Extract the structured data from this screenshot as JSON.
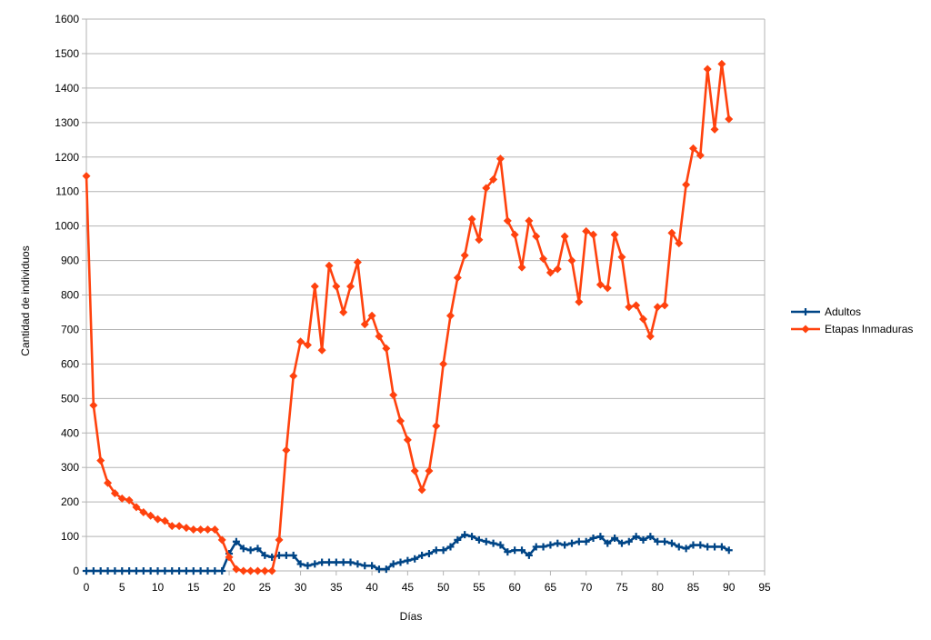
{
  "chart_data": {
    "type": "line",
    "xlabel": "Días",
    "ylabel": "Cantidad de individuos",
    "xlim": [
      0,
      95
    ],
    "ylim": [
      0,
      1600
    ],
    "x_ticks": [
      0,
      5,
      10,
      15,
      20,
      25,
      30,
      35,
      40,
      45,
      50,
      55,
      60,
      65,
      70,
      75,
      80,
      85,
      90,
      95
    ],
    "y_ticks": [
      0,
      100,
      200,
      300,
      400,
      500,
      600,
      700,
      800,
      900,
      1000,
      1100,
      1200,
      1300,
      1400,
      1500,
      1600
    ],
    "grid": "horizontal",
    "legend_position": "right",
    "series": [
      {
        "name": "Adultos",
        "color": "#004586",
        "marker": "plus",
        "x": [
          0,
          1,
          2,
          3,
          4,
          5,
          6,
          7,
          8,
          9,
          10,
          11,
          12,
          13,
          14,
          15,
          16,
          17,
          18,
          19,
          20,
          21,
          22,
          23,
          24,
          25,
          26,
          27,
          28,
          29,
          30,
          31,
          32,
          33,
          34,
          35,
          36,
          37,
          38,
          39,
          40,
          41,
          42,
          43,
          44,
          45,
          46,
          47,
          48,
          49,
          50,
          51,
          52,
          53,
          54,
          55,
          56,
          57,
          58,
          59,
          60,
          61,
          62,
          63,
          64,
          65,
          66,
          67,
          68,
          69,
          70,
          71,
          72,
          73,
          74,
          75,
          76,
          77,
          78,
          79,
          80,
          81,
          82,
          83,
          84,
          85,
          86,
          87,
          88,
          89,
          90
        ],
        "values": [
          0,
          0,
          0,
          0,
          0,
          0,
          0,
          0,
          0,
          0,
          0,
          0,
          0,
          0,
          0,
          0,
          0,
          0,
          0,
          0,
          50,
          85,
          65,
          60,
          65,
          45,
          40,
          45,
          45,
          45,
          20,
          15,
          20,
          25,
          25,
          25,
          25,
          25,
          20,
          15,
          15,
          5,
          5,
          20,
          25,
          30,
          35,
          45,
          50,
          60,
          60,
          70,
          90,
          105,
          100,
          90,
          85,
          80,
          75,
          55,
          60,
          60,
          45,
          70,
          70,
          75,
          80,
          75,
          80,
          85,
          85,
          95,
          100,
          80,
          95,
          80,
          85,
          100,
          90,
          100,
          85,
          85,
          80,
          70,
          65,
          75,
          75,
          70,
          70,
          70,
          60
        ]
      },
      {
        "name": "Etapas Inmaduras",
        "color": "#ff420e",
        "marker": "diamond",
        "x": [
          0,
          1,
          2,
          3,
          4,
          5,
          6,
          7,
          8,
          9,
          10,
          11,
          12,
          13,
          14,
          15,
          16,
          17,
          18,
          19,
          20,
          21,
          22,
          23,
          24,
          25,
          26,
          27,
          28,
          29,
          30,
          31,
          32,
          33,
          34,
          35,
          36,
          37,
          38,
          39,
          40,
          41,
          42,
          43,
          44,
          45,
          46,
          47,
          48,
          49,
          50,
          51,
          52,
          53,
          54,
          55,
          56,
          57,
          58,
          59,
          60,
          61,
          62,
          63,
          64,
          65,
          66,
          67,
          68,
          69,
          70,
          71,
          72,
          73,
          74,
          75,
          76,
          77,
          78,
          79,
          80,
          81,
          82,
          83,
          84,
          85,
          86,
          87,
          88,
          89,
          90
        ],
        "values": [
          1145,
          480,
          320,
          255,
          225,
          210,
          205,
          185,
          170,
          160,
          150,
          145,
          130,
          130,
          125,
          120,
          120,
          120,
          120,
          90,
          40,
          5,
          0,
          0,
          0,
          0,
          0,
          90,
          350,
          565,
          665,
          655,
          825,
          640,
          885,
          825,
          750,
          825,
          895,
          715,
          740,
          680,
          645,
          510,
          435,
          380,
          290,
          235,
          290,
          420,
          600,
          740,
          850,
          915,
          1020,
          960,
          1110,
          1135,
          1195,
          1015,
          975,
          880,
          1015,
          970,
          905,
          865,
          875,
          970,
          900,
          780,
          985,
          975,
          830,
          820,
          975,
          910,
          765,
          770,
          730,
          680,
          765,
          770,
          980,
          950,
          1120,
          1225,
          1205,
          1455,
          1280,
          1470,
          1310
        ]
      }
    ]
  }
}
